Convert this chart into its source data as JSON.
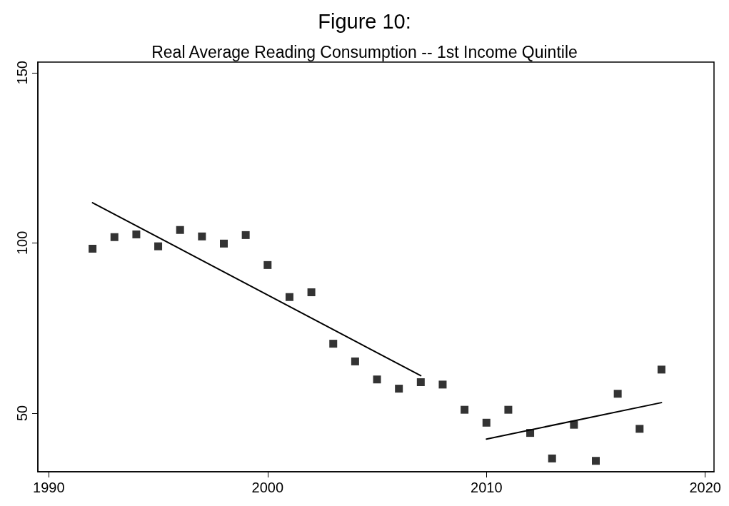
{
  "chart_data": {
    "type": "scatter",
    "title": "Figure 10:",
    "subtitle": "Real Average Reading Consumption -- 1st Income Quintile",
    "xlim": [
      1989.5,
      2020.4
    ],
    "xticks": [
      1990,
      2000,
      2010,
      2020
    ],
    "ylim": [
      32.8,
      153.1
    ],
    "yticks": [
      50,
      100,
      150
    ],
    "grid": false,
    "marker": "square",
    "series": [
      {
        "color": "#000000",
        "x": [
          1992,
          1993,
          1994,
          1995,
          1996,
          1997,
          1998,
          1999,
          2000,
          2001,
          2002,
          2003,
          2004,
          2005,
          2006,
          2007,
          2008,
          2009,
          2010,
          2011,
          2012,
          2013,
          2014,
          2015,
          2016,
          2017,
          2018
        ],
        "values": [
          98.3,
          101.7,
          102.5,
          99.0,
          103.8,
          101.9,
          99.8,
          102.3,
          93.5,
          84.1,
          85.5,
          70.4,
          65.2,
          59.9,
          57.2,
          59.1,
          58.4,
          51.0,
          47.2,
          51.0,
          44.2,
          36.7,
          46.6,
          36.0,
          55.7,
          45.4,
          62.8
        ]
      },
      {
        "type": "line",
        "color": "#000000",
        "marker": "none",
        "line_style": "solid",
        "x": [
          1992,
          2007
        ],
        "values": [
          111.8,
          61.0
        ]
      },
      {
        "type": "line",
        "color": "#000000",
        "marker": "none",
        "line_style": "solid",
        "x": [
          2010,
          2018
        ],
        "values": [
          42.4,
          53.1
        ]
      }
    ]
  }
}
